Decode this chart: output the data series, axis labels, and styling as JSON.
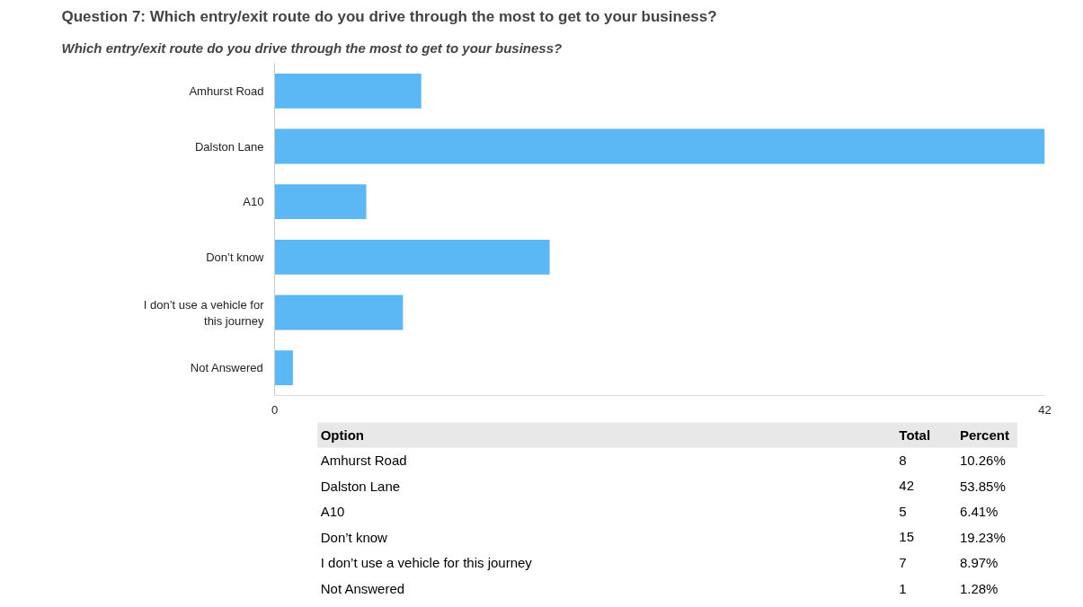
{
  "chart_data": [
    {
      "type": "bar",
      "orientation": "horizontal",
      "title": "Question 7: Which entry/exit route do you drive through the most to get to your business?",
      "subtitle": "Which entry/exit route do you drive through the most to get to your business?",
      "categories": [
        "Amhurst Road",
        "Dalston Lane",
        "A10",
        "Don’t know",
        "I don’t use a vehicle for this journey",
        "Not Answered"
      ],
      "values": [
        8,
        42,
        5,
        15,
        7,
        1
      ],
      "color": "#5cb8f4",
      "xlim": [
        0,
        42
      ],
      "xticks": [
        0,
        42
      ]
    },
    {
      "type": "other",
      "annotations": [
        "Option",
        "Total",
        "Percent",
        "Amhurst Road",
        "8",
        "10.26%",
        "Dalston Lane",
        "42",
        "53.85%",
        "A10",
        "5",
        "6.41%",
        "Don’t know",
        "15",
        "19.23%",
        "I don’t use a vehicle for this journey",
        "7",
        "8.97%",
        "Not Answered",
        "1",
        "1.28%"
      ]
    }
  ]
}
